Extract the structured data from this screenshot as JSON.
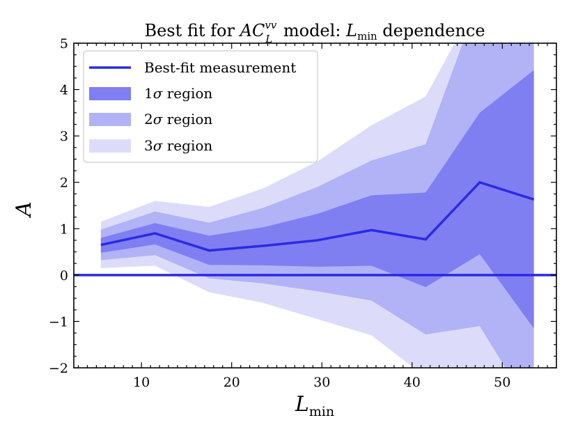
{
  "chart_data": {
    "type": "area",
    "title": {
      "prefix": "Best fit for ",
      "symbol": "AC",
      "superscript": "vv",
      "subscript": "L",
      "middle": " model: ",
      "var": "L",
      "var_sub": "min",
      "suffix": " dependence"
    },
    "xlabel": {
      "main": "L",
      "sub": "min"
    },
    "ylabel": "A",
    "xlim": [
      2.5,
      56
    ],
    "ylim": [
      -2,
      5
    ],
    "xticks": [
      10,
      20,
      30,
      40,
      50
    ],
    "yticks": [
      -2,
      -1,
      0,
      1,
      2,
      3,
      4,
      5
    ],
    "ytick_labels": [
      "−2",
      "−1",
      "0",
      "1",
      "2",
      "3",
      "4",
      "5"
    ],
    "x": [
      5.5,
      11.5,
      17.5,
      23.5,
      29.5,
      35.5,
      41.5,
      47.5,
      53.5
    ],
    "best_fit": [
      0.65,
      0.9,
      0.53,
      0.63,
      0.75,
      0.97,
      0.77,
      2.0,
      1.63
    ],
    "bands": [
      {
        "name": "3sigma",
        "lower": [
          0.15,
          0.2,
          -0.37,
          -0.6,
          -0.95,
          -1.3,
          -2.2,
          -3.0,
          -3.0
        ],
        "upper": [
          1.15,
          1.6,
          1.47,
          1.87,
          2.45,
          3.23,
          3.85,
          6.0,
          6.0
        ],
        "color": "#dcdcfa"
      },
      {
        "name": "2sigma",
        "lower": [
          0.32,
          0.43,
          -0.07,
          -0.18,
          -0.35,
          -0.55,
          -1.28,
          -1.1,
          -3.0
        ],
        "upper": [
          0.98,
          1.37,
          1.13,
          1.45,
          1.9,
          2.47,
          2.82,
          6.0,
          6.0
        ],
        "color": "#b2b2f6"
      },
      {
        "name": "1sigma",
        "lower": [
          0.48,
          0.66,
          0.22,
          0.21,
          0.18,
          0.2,
          -0.26,
          0.45,
          -1.15
        ],
        "upper": [
          0.8,
          1.12,
          0.85,
          1.03,
          1.32,
          1.72,
          1.78,
          3.5,
          4.42
        ],
        "color": "#7f7ff2"
      }
    ],
    "hline": 0,
    "line_color": "#2a2ae4",
    "legend": {
      "position": "top-left",
      "entries": [
        {
          "label": "Best-fit measurement",
          "kind": "line"
        },
        {
          "label_prefix": "1",
          "label_symbol": "σ",
          "label_suffix": " region",
          "kind": "band",
          "band": "1sigma"
        },
        {
          "label_prefix": "2",
          "label_symbol": "σ",
          "label_suffix": " region",
          "kind": "band",
          "band": "2sigma"
        },
        {
          "label_prefix": "3",
          "label_symbol": "σ",
          "label_suffix": " region",
          "kind": "band",
          "band": "3sigma"
        }
      ]
    }
  }
}
